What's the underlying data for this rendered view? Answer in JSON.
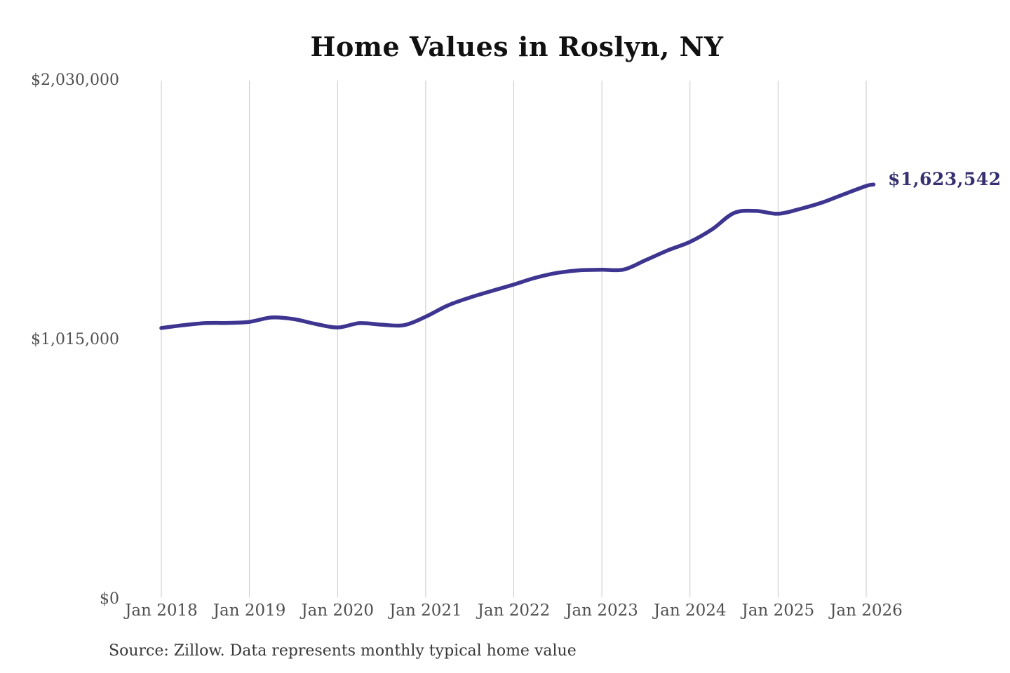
{
  "page": {
    "background_color": "#ffffff"
  },
  "chart": {
    "title": "Home Values in Roslyn, NY",
    "source_note": "Source: Zillow. Data represents monthly typical home value",
    "colors": {
      "line": "#3d3590",
      "end_label": "#35306f",
      "gridline": "#c9c9c9",
      "axis_label": "#505050",
      "title": "#111111",
      "source": "#383838"
    }
  },
  "chart_data": {
    "type": "line",
    "title": "Home Values in Roslyn, NY",
    "xlabel": "",
    "ylabel": "",
    "ylim": [
      0,
      2030000
    ],
    "grid": "vertical-only",
    "legend": "none",
    "x_tick_labels": [
      "Jan 2018",
      "Jan 2019",
      "Jan 2020",
      "Jan 2021",
      "Jan 2022",
      "Jan 2023",
      "Jan 2024",
      "Jan 2025",
      "Jan 2026"
    ],
    "y_ticks": [
      {
        "value": 0,
        "label": "$0"
      },
      {
        "value": 1015000,
        "label": "$1,015,000"
      },
      {
        "value": 2030000,
        "label": "$2,030,000"
      }
    ],
    "annotation": {
      "text": "$1,623,542",
      "value": 1623542,
      "position": "end-of-line"
    },
    "series": [
      {
        "name": "Monthly typical home value",
        "points": [
          [
            "2018-01",
            1062000
          ],
          [
            "2018-04",
            1073000
          ],
          [
            "2018-07",
            1081000
          ],
          [
            "2018-10",
            1082000
          ],
          [
            "2019-01",
            1086000
          ],
          [
            "2019-04",
            1103000
          ],
          [
            "2019-07",
            1097000
          ],
          [
            "2019-10",
            1078000
          ],
          [
            "2020-01",
            1064000
          ],
          [
            "2020-04",
            1081000
          ],
          [
            "2020-07",
            1075000
          ],
          [
            "2020-10",
            1073000
          ],
          [
            "2021-01",
            1106000
          ],
          [
            "2021-04",
            1150000
          ],
          [
            "2021-07",
            1181000
          ],
          [
            "2021-10",
            1207000
          ],
          [
            "2022-01",
            1232000
          ],
          [
            "2022-04",
            1259000
          ],
          [
            "2022-07",
            1278000
          ],
          [
            "2022-10",
            1288000
          ],
          [
            "2023-01",
            1290000
          ],
          [
            "2023-04",
            1291000
          ],
          [
            "2023-07",
            1328000
          ],
          [
            "2023-10",
            1366000
          ],
          [
            "2024-01",
            1399000
          ],
          [
            "2024-04",
            1448000
          ],
          [
            "2024-07",
            1512000
          ],
          [
            "2024-10",
            1520000
          ],
          [
            "2025-01",
            1509000
          ],
          [
            "2025-04",
            1528000
          ],
          [
            "2025-07",
            1553000
          ],
          [
            "2025-10",
            1586000
          ],
          [
            "2026-01",
            1618000
          ],
          [
            "2026-02",
            1623542
          ]
        ]
      }
    ],
    "source": "Source: Zillow. Data represents monthly typical home value"
  }
}
